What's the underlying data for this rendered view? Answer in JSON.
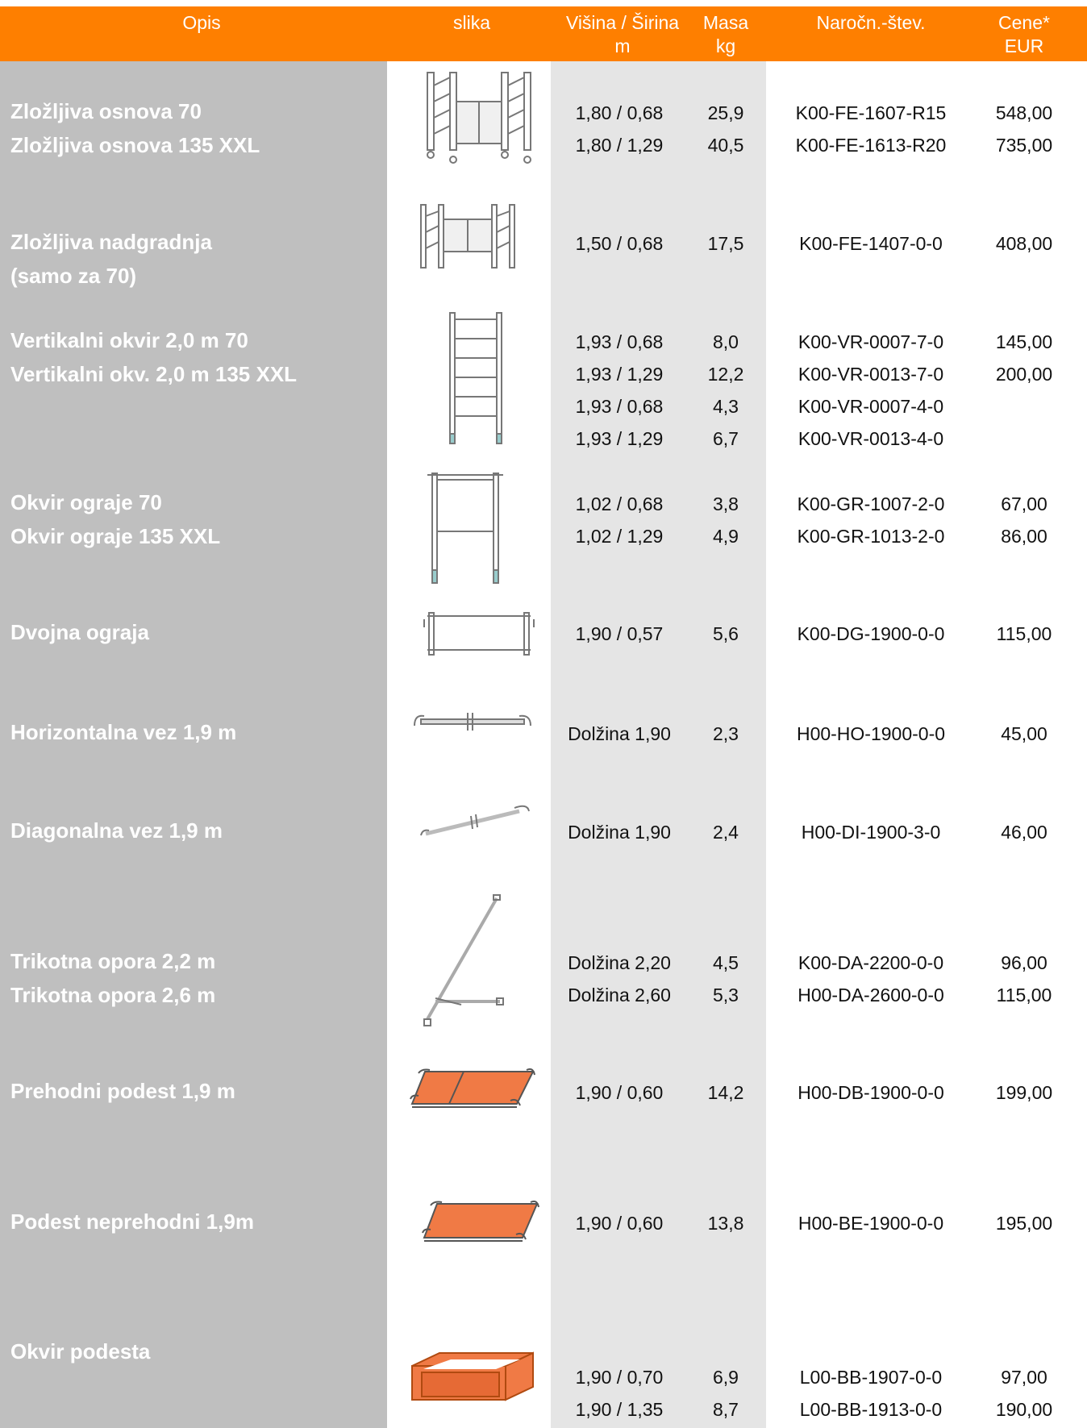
{
  "header": {
    "opis": "Opis",
    "slika": "slika",
    "dim_line1": "Višina / Širina",
    "dim_line2": "m",
    "mass_line1": "Masa",
    "mass_line2": "kg",
    "order": "Naročn.-štev.",
    "price_line1": "Cene*",
    "price_line2": "EUR"
  },
  "colors": {
    "header": "#fe7f00",
    "opis_band": "#bfbfbf",
    "dim_band": "#e5e5e5",
    "platform": "#f07a45"
  },
  "rows": [
    {
      "desc": [
        "Zložljiva osnova 70",
        "Zložljiva osnova 135 XXL"
      ],
      "icon": "folding-base-frame-icon",
      "dims": [
        "1,80 / 0,68",
        "1,80 / 1,29"
      ],
      "mass": [
        "25,9",
        "40,5"
      ],
      "order": [
        "K00-FE-1607-R15",
        "K00-FE-1613-R20"
      ],
      "price": [
        "548,00",
        "735,00"
      ]
    },
    {
      "desc": [
        "Zložljiva nadgradnja",
        "(samo za 70)"
      ],
      "icon": "folding-extension-frame-icon",
      "dims": [
        "1,50 / 0,68"
      ],
      "mass": [
        "17,5"
      ],
      "order": [
        "K00-FE-1407-0-0"
      ],
      "price": [
        "408,00"
      ]
    },
    {
      "desc": [
        "Vertikalni okvir 2,0 m 70",
        "Vertikalni okv. 2,0 m 135 XXL"
      ],
      "icon": "vertical-frame-icon",
      "dims": [
        "1,93 / 0,68",
        "1,93 / 1,29",
        "1,93 / 0,68",
        "1,93 / 1,29"
      ],
      "mass": [
        "8,0",
        "12,2",
        "4,3",
        "6,7"
      ],
      "order": [
        "K00-VR-0007-7-0",
        "K00-VR-0013-7-0",
        "K00-VR-0007-4-0",
        "K00-VR-0013-4-0"
      ],
      "price": [
        "145,00",
        "200,00",
        "",
        ""
      ]
    },
    {
      "desc": [
        "Okvir ograje 70",
        "Okvir ograje 135 XXL"
      ],
      "icon": "guardrail-frame-icon",
      "dims": [
        "1,02 / 0,68",
        "1,02 / 1,29"
      ],
      "mass": [
        "3,8",
        "4,9"
      ],
      "order": [
        "K00-GR-1007-2-0",
        "K00-GR-1013-2-0"
      ],
      "price": [
        "67,00",
        "86,00"
      ]
    },
    {
      "desc": [
        "Dvojna ograja"
      ],
      "icon": "double-guardrail-icon",
      "dims": [
        "1,90 / 0,57"
      ],
      "mass": [
        "5,6"
      ],
      "order": [
        "K00-DG-1900-0-0"
      ],
      "price": [
        "115,00"
      ]
    },
    {
      "desc": [
        "Horizontalna vez 1,9 m"
      ],
      "icon": "horizontal-brace-icon",
      "dims": [
        "Dolžina 1,90"
      ],
      "mass": [
        "2,3"
      ],
      "order": [
        "H00-HO-1900-0-0"
      ],
      "price": [
        "45,00"
      ]
    },
    {
      "desc": [
        "Diagonalna vez 1,9 m"
      ],
      "icon": "diagonal-brace-icon",
      "dims": [
        "Dolžina 1,90"
      ],
      "mass": [
        "2,4"
      ],
      "order": [
        "H00-DI-1900-3-0"
      ],
      "price": [
        "46,00"
      ]
    },
    {
      "desc": [
        "Trikotna opora 2,2 m",
        "Trikotna opora 2,6 m"
      ],
      "icon": "triangle-stabilizer-icon",
      "dims": [
        "Dolžina 2,20",
        "Dolžina 2,60"
      ],
      "mass": [
        "4,5",
        "5,3"
      ],
      "order": [
        "K00-DA-2200-0-0",
        "H00-DA-2600-0-0"
      ],
      "price": [
        "96,00",
        "115,00"
      ]
    },
    {
      "desc": [
        "Prehodni podest 1,9 m"
      ],
      "icon": "trapdoor-platform-icon",
      "dims": [
        "1,90 / 0,60"
      ],
      "mass": [
        "14,2"
      ],
      "order": [
        "H00-DB-1900-0-0"
      ],
      "price": [
        "199,00"
      ]
    },
    {
      "desc": [
        "Podest neprehodni 1,9m"
      ],
      "icon": "platform-icon",
      "dims": [
        "1,90 / 0,60"
      ],
      "mass": [
        "13,8"
      ],
      "order": [
        "H00-BE-1900-0-0"
      ],
      "price": [
        "195,00"
      ]
    },
    {
      "desc": [
        "Okvir podesta"
      ],
      "icon": "platform-frame-icon",
      "dims": [
        "1,90 / 0,70",
        "1,90 / 1,35"
      ],
      "mass": [
        "6,9",
        "8,7"
      ],
      "order": [
        "L00-BB-1907-0-0",
        "L00-BB-1913-0-0"
      ],
      "price": [
        "97,00",
        "190,00"
      ]
    }
  ]
}
